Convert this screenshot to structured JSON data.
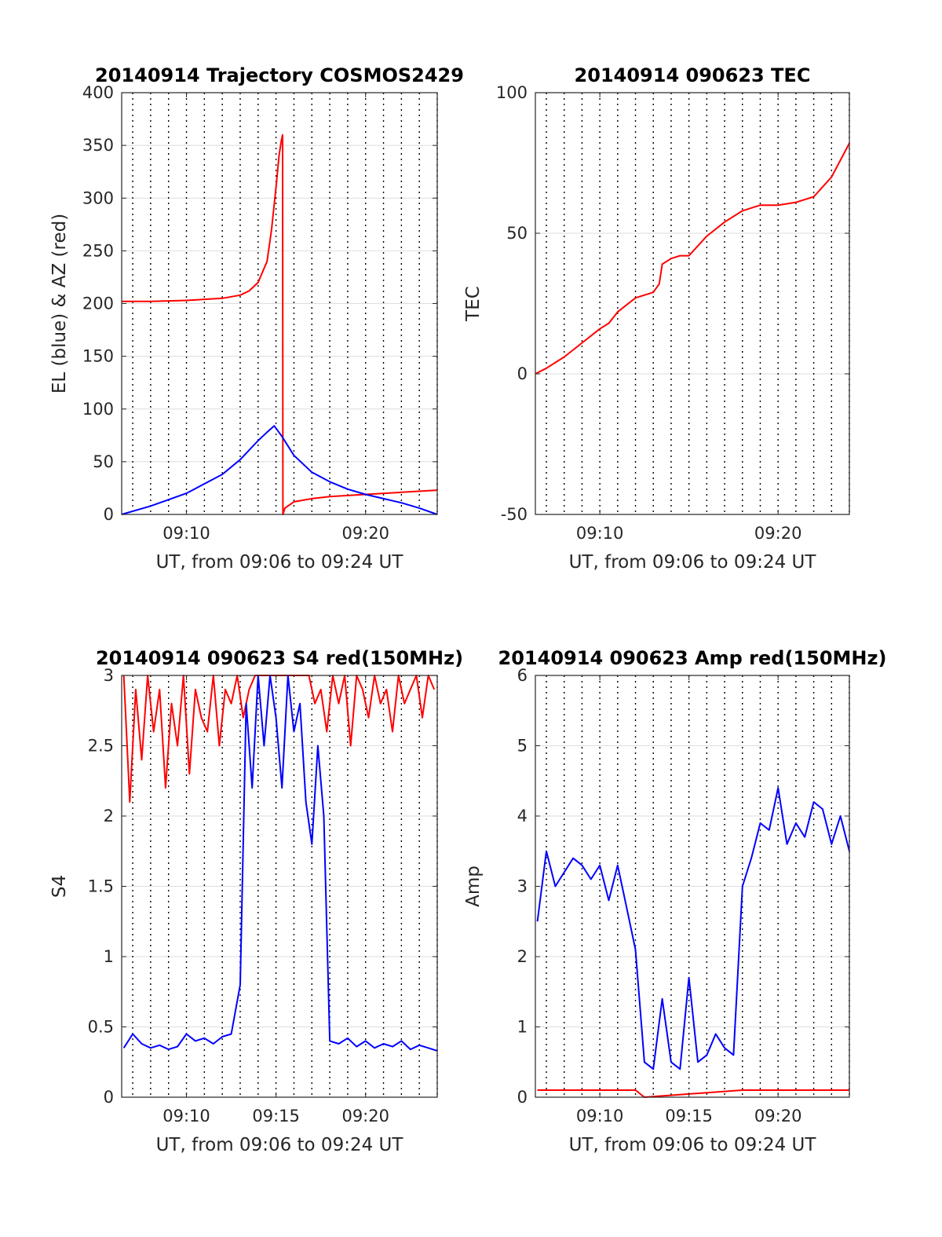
{
  "chart_data": [
    {
      "type": "line",
      "title": "20140914 Trajectory COSMOS2429",
      "xlabel": "UT, from 09:06 to 09:24 UT",
      "ylabel": "EL (blue) & AZ (red)",
      "xlim": [
        "09:06:23",
        "09:24:00"
      ],
      "ylim": [
        0,
        400
      ],
      "xticks": [
        "09:10",
        "09:20"
      ],
      "yticks": [
        0,
        50,
        100,
        150,
        200,
        250,
        300,
        350,
        400
      ],
      "grid": true,
      "series": [
        {
          "color": "#ff0000",
          "x": [
            "09:06:23",
            "09:08:00",
            "09:10:00",
            "09:12:00",
            "09:13:00",
            "09:13:30",
            "09:14:00",
            "09:14:30",
            "09:14:45",
            "09:15:00",
            "09:15:10",
            "09:15:18",
            "09:15:22",
            "09:15:23",
            "09:15:30",
            "09:16:00",
            "09:17:00",
            "09:18:00",
            "09:20:00",
            "09:22:00",
            "09:24:00"
          ],
          "values": [
            202,
            202,
            203,
            205,
            208,
            212,
            220,
            240,
            270,
            310,
            340,
            355,
            360,
            0,
            6,
            12,
            15,
            17,
            19,
            21,
            23
          ]
        },
        {
          "color": "#0000ff",
          "x": [
            "09:06:23",
            "09:08:00",
            "09:10:00",
            "09:12:00",
            "09:13:00",
            "09:14:00",
            "09:14:30",
            "09:14:54",
            "09:15:20",
            "09:16:00",
            "09:17:00",
            "09:18:00",
            "09:19:00",
            "09:20:00",
            "09:21:00",
            "09:22:00",
            "09:23:00",
            "09:24:00"
          ],
          "values": [
            0,
            8,
            20,
            38,
            52,
            70,
            78,
            84,
            74,
            56,
            40,
            31,
            24,
            19,
            15,
            11,
            6,
            0
          ]
        }
      ]
    },
    {
      "type": "line",
      "title": "20140914 090623 TEC",
      "xlabel": "UT, from 09:06 to 09:24 UT",
      "ylabel": "TEC",
      "xlim": [
        "09:06:23",
        "09:24:00"
      ],
      "ylim": [
        -50,
        100
      ],
      "xticks": [
        "09:10",
        "09:20"
      ],
      "yticks": [
        -50,
        0,
        50,
        100
      ],
      "grid": true,
      "series": [
        {
          "color": "#ff0000",
          "x": [
            "09:06:23",
            "09:07:00",
            "09:08:00",
            "09:09:00",
            "09:10:00",
            "09:10:30",
            "09:11:00",
            "09:12:00",
            "09:13:00",
            "09:13:20",
            "09:13:30",
            "09:14:00",
            "09:14:30",
            "09:15:00",
            "09:16:00",
            "09:17:00",
            "09:18:00",
            "09:19:00",
            "09:20:00",
            "09:21:00",
            "09:22:00",
            "09:23:00",
            "09:24:00"
          ],
          "values": [
            0,
            2,
            6,
            11,
            16,
            18,
            22,
            27,
            29,
            32,
            39,
            41,
            42,
            42,
            49,
            54,
            58,
            60,
            60,
            61,
            63,
            70,
            82
          ]
        }
      ]
    },
    {
      "type": "line",
      "title": "20140914 090623 S4 red(150MHz)",
      "xlabel": "UT, from 09:06 to 09:24 UT",
      "ylabel": "S4",
      "xlim": [
        "09:06:23",
        "09:24:00"
      ],
      "ylim": [
        0,
        3
      ],
      "xticks": [
        "09:10",
        "09:15",
        "09:20"
      ],
      "yticks": [
        0,
        0.5,
        1,
        1.5,
        2,
        2.5,
        3
      ],
      "grid": true,
      "series": [
        {
          "color": "#ff0000",
          "x": [
            "09:06:30",
            "09:06:50",
            "09:07:10",
            "09:07:30",
            "09:07:50",
            "09:08:10",
            "09:08:30",
            "09:08:50",
            "09:09:10",
            "09:09:30",
            "09:09:50",
            "09:10:10",
            "09:10:30",
            "09:10:50",
            "09:11:10",
            "09:11:30",
            "09:11:50",
            "09:12:10",
            "09:12:30",
            "09:12:50",
            "09:13:10",
            "09:13:30",
            "09:13:50",
            "09:14:10",
            "09:16:50",
            "09:17:10",
            "09:17:30",
            "09:17:50",
            "09:18:10",
            "09:18:30",
            "09:18:50",
            "09:19:10",
            "09:19:30",
            "09:19:50",
            "09:20:10",
            "09:20:30",
            "09:20:50",
            "09:21:10",
            "09:21:30",
            "09:21:50",
            "09:22:10",
            "09:22:30",
            "09:22:50",
            "09:23:10",
            "09:23:30",
            "09:23:50"
          ],
          "values": [
            3,
            2.1,
            2.9,
            2.4,
            3,
            2.6,
            2.9,
            2.2,
            2.8,
            2.5,
            3,
            2.3,
            2.9,
            2.7,
            2.6,
            3,
            2.5,
            2.9,
            2.8,
            3,
            2.7,
            2.9,
            3,
            3,
            3,
            2.8,
            2.9,
            2.6,
            3,
            2.8,
            3,
            2.5,
            3,
            2.9,
            2.7,
            3,
            2.8,
            2.9,
            2.6,
            3,
            2.8,
            2.9,
            3,
            2.7,
            3,
            2.9
          ]
        },
        {
          "color": "#0000ff",
          "x": [
            "09:06:30",
            "09:07:00",
            "09:07:30",
            "09:08:00",
            "09:08:30",
            "09:09:00",
            "09:09:30",
            "09:10:00",
            "09:10:30",
            "09:11:00",
            "09:11:30",
            "09:12:00",
            "09:12:30",
            "09:13:00",
            "09:13:20",
            "09:13:40",
            "09:14:00",
            "09:14:20",
            "09:14:40",
            "09:15:00",
            "09:15:20",
            "09:15:40",
            "09:16:00",
            "09:16:20",
            "09:16:40",
            "09:17:00",
            "09:17:20",
            "09:17:40",
            "09:18:00",
            "09:18:30",
            "09:19:00",
            "09:19:30",
            "09:20:00",
            "09:20:30",
            "09:21:00",
            "09:21:30",
            "09:22:00",
            "09:22:30",
            "09:23:00",
            "09:23:30",
            "09:24:00"
          ],
          "values": [
            0.35,
            0.45,
            0.38,
            0.35,
            0.37,
            0.34,
            0.36,
            0.45,
            0.4,
            0.42,
            0.38,
            0.43,
            0.45,
            0.8,
            2.8,
            2.2,
            3,
            2.5,
            3,
            2.7,
            2.2,
            3,
            2.6,
            2.8,
            2.1,
            1.8,
            2.5,
            2.0,
            0.4,
            0.38,
            0.42,
            0.36,
            0.4,
            0.35,
            0.38,
            0.36,
            0.4,
            0.34,
            0.37,
            0.35,
            0.33
          ]
        }
      ]
    },
    {
      "type": "line",
      "title": "20140914 090623 Amp red(150MHz)",
      "xlabel": "UT, from 09:06 to 09:24 UT",
      "ylabel": "Amp",
      "xlim": [
        "09:06:23",
        "09:24:00"
      ],
      "ylim": [
        0,
        6
      ],
      "xticks": [
        "09:10",
        "09:15",
        "09:20"
      ],
      "yticks": [
        0,
        1,
        2,
        3,
        4,
        5,
        6
      ],
      "grid": true,
      "series": [
        {
          "color": "#0000ff",
          "x": [
            "09:06:30",
            "09:07:00",
            "09:07:30",
            "09:08:00",
            "09:08:30",
            "09:09:00",
            "09:09:30",
            "09:10:00",
            "09:10:30",
            "09:11:00",
            "09:11:30",
            "09:12:00",
            "09:12:30",
            "09:13:00",
            "09:13:30",
            "09:14:00",
            "09:14:30",
            "09:15:00",
            "09:15:30",
            "09:16:00",
            "09:16:30",
            "09:17:00",
            "09:17:30",
            "09:18:00",
            "09:18:30",
            "09:19:00",
            "09:19:30",
            "09:20:00",
            "09:20:30",
            "09:21:00",
            "09:21:30",
            "09:22:00",
            "09:22:30",
            "09:23:00",
            "09:23:30",
            "09:24:00"
          ],
          "values": [
            2.5,
            3.5,
            3.0,
            3.2,
            3.4,
            3.3,
            3.1,
            3.3,
            2.8,
            3.3,
            2.7,
            2.1,
            0.5,
            0.4,
            1.4,
            0.5,
            0.4,
            1.7,
            0.5,
            0.6,
            0.9,
            0.7,
            0.6,
            3.0,
            3.4,
            3.9,
            3.8,
            4.4,
            3.6,
            3.9,
            3.7,
            4.2,
            4.1,
            3.6,
            4.0,
            3.5
          ]
        },
        {
          "color": "#ff0000",
          "x": [
            "09:06:30",
            "09:08:00",
            "09:10:00",
            "09:12:00",
            "09:12:30",
            "09:18:00",
            "09:20:00",
            "09:22:00",
            "09:24:00"
          ],
          "values": [
            0.1,
            0.1,
            0.1,
            0.1,
            0,
            0.1,
            0.1,
            0.1,
            0.1
          ]
        }
      ]
    }
  ]
}
